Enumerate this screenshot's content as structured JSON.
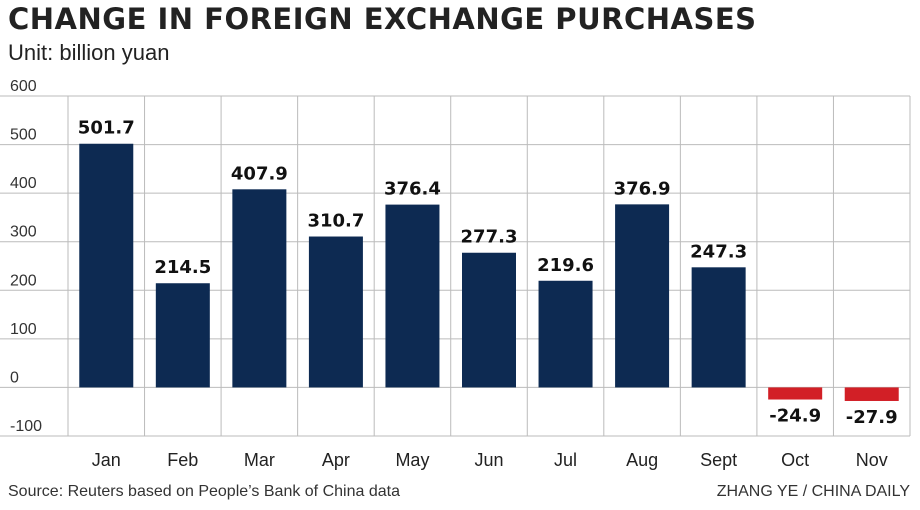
{
  "header": {
    "title": "CHANGE IN FOREIGN EXCHANGE PURCHASES",
    "unit": "Unit: billion yuan"
  },
  "footer": {
    "source": "Source: Reuters based on People’s Bank of China data",
    "credit": "ZHANG YE / CHINA DAILY"
  },
  "colors": {
    "positive": "#0d2a52",
    "negative": "#d21f26",
    "grid": "#bbbbbb"
  },
  "chart_data": {
    "type": "bar",
    "title": "CHANGE IN FOREIGN EXCHANGE PURCHASES",
    "ylabel": "Unit: billion yuan",
    "categories": [
      "Jan",
      "Feb",
      "Mar",
      "Apr",
      "May",
      "Jun",
      "Jul",
      "Aug",
      "Sept",
      "Oct",
      "Nov"
    ],
    "values": [
      501.7,
      214.5,
      407.9,
      310.7,
      376.4,
      277.3,
      219.6,
      376.9,
      247.3,
      -24.9,
      -27.9
    ],
    "data_labels": [
      "501.7",
      "214.5",
      "407.9",
      "310.7",
      "376.4",
      "277.3",
      "219.6",
      "376.9",
      "247.3",
      "-24.9",
      "-27.9"
    ],
    "ylim": [
      -100,
      600
    ],
    "yticks": [
      -100,
      0,
      100,
      200,
      300,
      400,
      500,
      600
    ],
    "grid": true,
    "legend": "none"
  }
}
